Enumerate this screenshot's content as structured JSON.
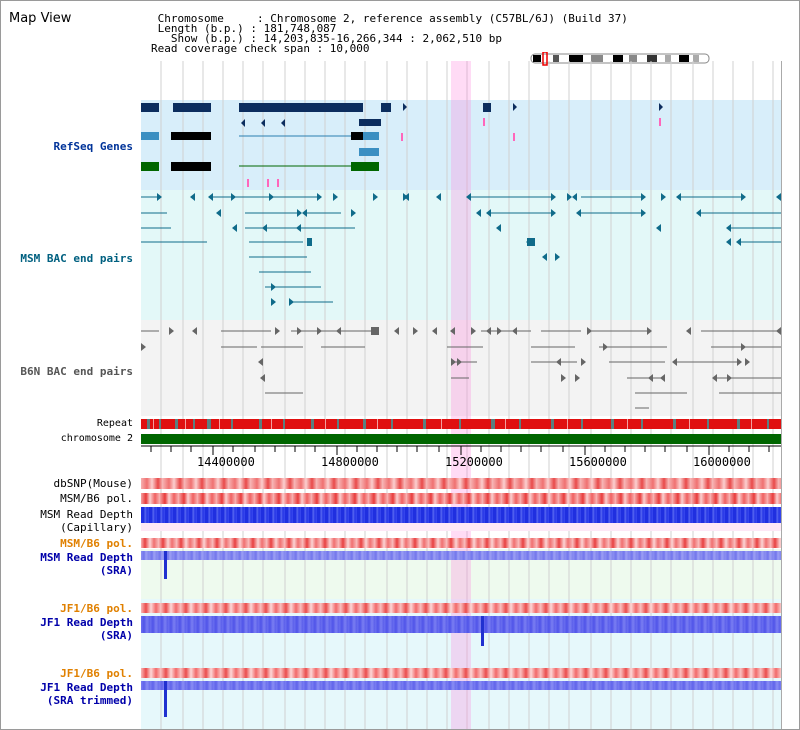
{
  "header": {
    "title": "Map View",
    "info_lines": [
      " Chromosome     : Chromosome 2, reference assembly (C57BL/6J) (Build 37)",
      " Length (b.p.) : 181,748,087",
      "   Show (b.p.) : 14,203,835-16,266,344 : 2,062,510 bp",
      "Read coverage check span : 10,000"
    ]
  },
  "tracks": {
    "refseq": {
      "label": "RefSeq Genes",
      "color": "#003399"
    },
    "msm_bac": {
      "label": "MSM BAC end pairs",
      "color": "#006080"
    },
    "b6n_bac": {
      "label": "B6N BAC end pairs",
      "color": "#555555"
    },
    "repeat": {
      "label": "Repeat"
    },
    "chromosome": {
      "label": "chromosome 2",
      "color": "#006600"
    },
    "dbsnp": {
      "label": "dbSNP(Mouse)"
    },
    "msm_b6_pol": {
      "label": "MSM/B6 pol."
    },
    "msm_read_depth_cap": {
      "label": "MSM Read Depth\n(Capillary)"
    },
    "msm_b6_pol2": {
      "label": "MSM/B6 pol.",
      "color": "#e08000"
    },
    "msm_read_depth_sra": {
      "label": "MSM Read Depth\n(SRA)",
      "color": "#0000aa"
    },
    "jf1_b6_pol": {
      "label": "JF1/B6 pol.",
      "color": "#e08000"
    },
    "jf1_read_depth_sra": {
      "label": "JF1 Read Depth\n(SRA)",
      "color": "#0000aa"
    },
    "jf1_b6_pol2": {
      "label": "JF1/B6 pol.",
      "color": "#e08000"
    },
    "jf1_read_depth_trim": {
      "label": "JF1 Read Depth\n(SRA trimmed)",
      "color": "#0000aa"
    }
  },
  "ruler": {
    "ticks": [
      "14400000",
      "14800000",
      "15200000",
      "15600000",
      "16000000"
    ]
  }
}
